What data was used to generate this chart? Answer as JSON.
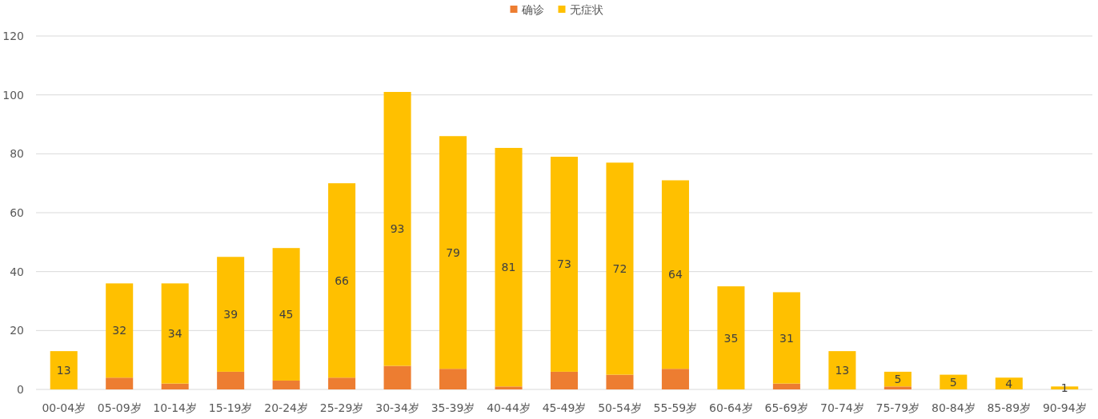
{
  "chart_data": {
    "type": "bar",
    "stacked": true,
    "categories": [
      "00-04岁",
      "05-09岁",
      "10-14岁",
      "15-19岁",
      "20-24岁",
      "25-29岁",
      "30-34岁",
      "35-39岁",
      "40-44岁",
      "45-49岁",
      "50-54岁",
      "55-59岁",
      "60-64岁",
      "65-69岁",
      "70-74岁",
      "75-79岁",
      "80-84岁",
      "85-89岁",
      "90-94岁"
    ],
    "series": [
      {
        "name": "确诊",
        "color": "#ed7d31",
        "values": [
          0,
          4,
          2,
          6,
          3,
          4,
          8,
          7,
          1,
          6,
          5,
          7,
          0,
          2,
          0,
          1,
          0,
          0,
          0
        ]
      },
      {
        "name": "无症状",
        "color": "#ffc000",
        "values": [
          13,
          32,
          34,
          39,
          45,
          66,
          93,
          79,
          81,
          73,
          72,
          64,
          35,
          31,
          13,
          5,
          5,
          4,
          1
        ],
        "value_labels": [
          "13",
          "32",
          "34",
          "39",
          "45",
          "66",
          "93",
          "79",
          "81",
          "73",
          "72",
          "64",
          "35",
          "31",
          "13",
          "5",
          "5",
          "4",
          "1"
        ]
      }
    ],
    "ylim": [
      0,
      120
    ],
    "yticks": [
      0,
      20,
      40,
      60,
      80,
      100,
      120
    ],
    "grid": "y",
    "legend": "top"
  }
}
